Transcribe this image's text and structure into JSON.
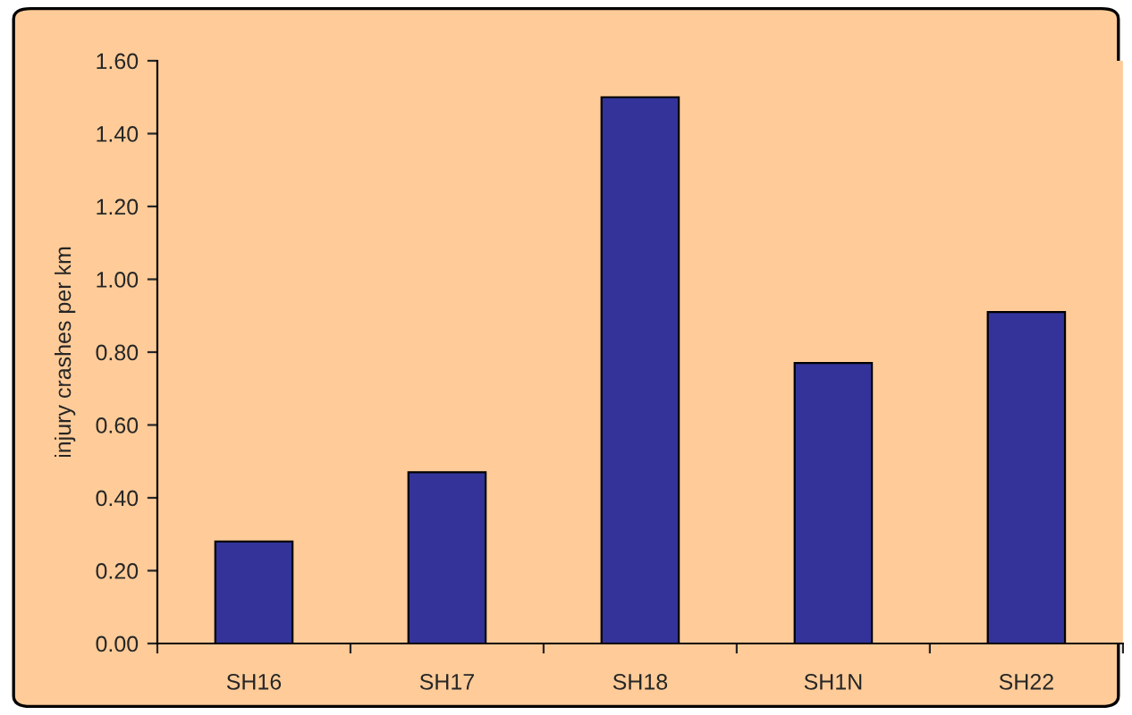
{
  "chart_data": {
    "type": "bar",
    "ylabel": "injury crashes per km",
    "categories": [
      "SH16",
      "SH17",
      "SH18",
      "SH1N",
      "SH22"
    ],
    "values": [
      0.28,
      0.47,
      1.5,
      0.77,
      0.91
    ],
    "color": "#333399",
    "ylim": [
      0,
      1.6
    ],
    "yticks": [
      {
        "value": 0,
        "label": "0.00"
      },
      {
        "value": 0.2,
        "label": "0.20"
      },
      {
        "value": 0.4,
        "label": "0.40"
      },
      {
        "value": 0.6,
        "label": "0.60"
      },
      {
        "value": 0.8,
        "label": "0.80"
      },
      {
        "value": 1.0,
        "label": "1.00"
      },
      {
        "value": 1.2,
        "label": "1.20"
      },
      {
        "value": 1.4,
        "label": "1.40"
      },
      {
        "value": 1.6,
        "label": "1.60"
      }
    ],
    "grid": false
  }
}
